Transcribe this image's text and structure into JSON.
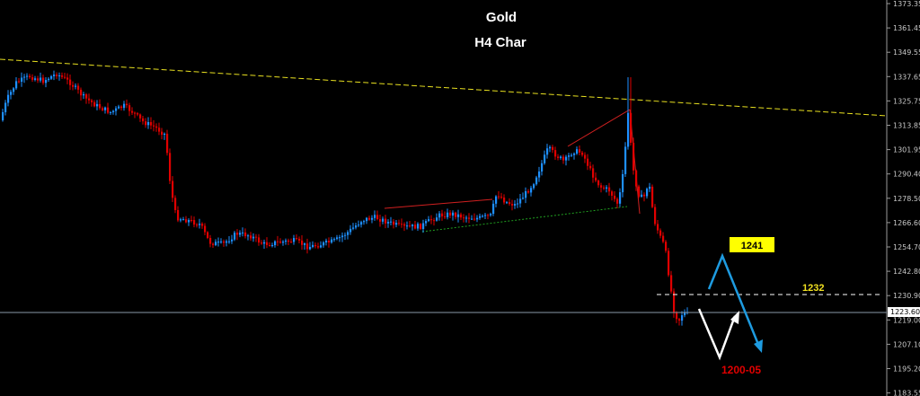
{
  "chart_data": {
    "type": "candlestick",
    "title": "Gold",
    "subtitle": "H4 Char",
    "y_ticks": [
      "1373.35",
      "1361.45",
      "1349.55",
      "1337.65",
      "1325.75",
      "1313.85",
      "1301.95",
      "1290.40",
      "1278.50",
      "1266.60",
      "1254.70",
      "1242.80",
      "1230.90",
      "1219.00",
      "1207.10",
      "1195.20",
      "1183.55"
    ],
    "current_price": "1223.60",
    "current_price_value": 1223.6,
    "ylim": [
      1183.55,
      1373.35
    ],
    "colors": {
      "up": "#1e90ff",
      "down": "#e00000",
      "background": "#000000",
      "trend": "#e8e020",
      "projection": "#1e9be0"
    },
    "key_levels": [
      {
        "label": "1232",
        "value": 1232,
        "color": "#f0e020"
      }
    ],
    "targets": [
      {
        "label": "1241",
        "value": 1241,
        "style": "yellow-box"
      },
      {
        "label": "1200-05",
        "value": 1202,
        "style": "red-text"
      }
    ]
  }
}
